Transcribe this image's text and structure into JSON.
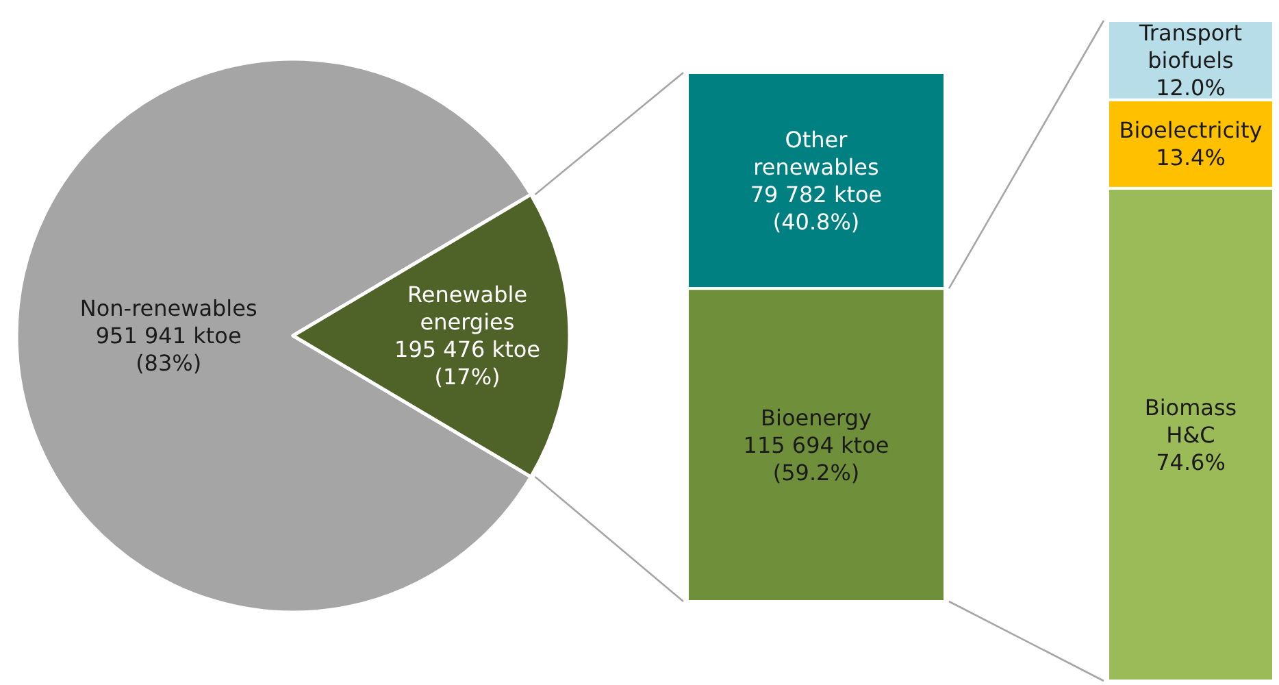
{
  "chart_data": [
    {
      "type": "pie",
      "categories": [
        "Non-renewables",
        "Renewable energies"
      ],
      "values": [
        951941,
        195476
      ],
      "colors": [
        "#a5a5a5",
        "#4f6228"
      ],
      "value_labels": [
        "951 941 ktoe (83%)",
        "195 476 ktoe (17%)"
      ]
    },
    {
      "type": "bar",
      "stacked": true,
      "categories": [
        null
      ],
      "series": [
        {
          "name": "Bioenergy",
          "color": "#6f8f3a",
          "values": [
            115694
          ],
          "value_labels": [
            "115 694 ktoe (59.2%)"
          ]
        },
        {
          "name": "Other renewables",
          "color": "#008080",
          "values": [
            79782
          ],
          "value_labels": [
            "79 782 ktoe (40.8%)"
          ]
        }
      ]
    },
    {
      "type": "bar",
      "stacked": true,
      "categories": [
        null
      ],
      "series": [
        {
          "name": "Biomass H&C",
          "color": "#9bbb59",
          "values": [
            74.6
          ],
          "value_labels": [
            "74.6%"
          ]
        },
        {
          "name": "Bioelectricity",
          "color": "#ffc000",
          "values": [
            13.4
          ],
          "value_labels": [
            "13.4%"
          ]
        },
        {
          "name": "Transport biofuels",
          "color": "#b7dde8",
          "values": [
            12.0
          ],
          "value_labels": [
            "12.0%"
          ]
        }
      ]
    }
  ]
}
